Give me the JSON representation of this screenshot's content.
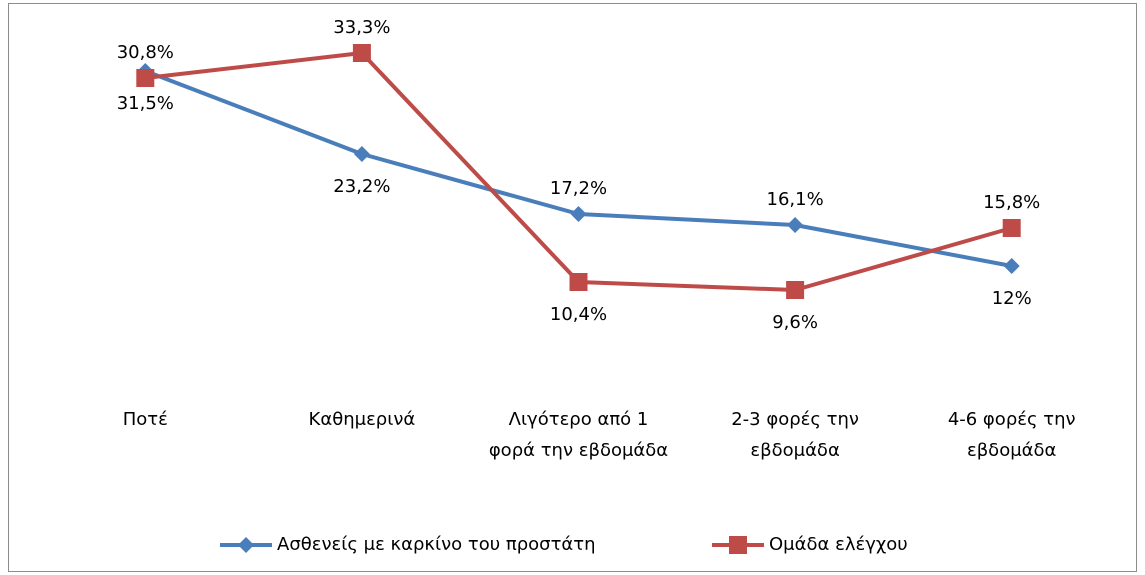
{
  "chart_data": {
    "type": "line",
    "categories": [
      "Ποτέ",
      "Καθημερινά",
      "Λιγότερο από 1 φορά την εβδομάδα",
      "2-3 φορές την εβδομάδα",
      "4-6 φορές την εβδομάδα"
    ],
    "series": [
      {
        "name": "Ασθενείς με καρκίνο του προστάτη",
        "color": "#4a7ebb",
        "values": [
          31.5,
          23.2,
          17.2,
          16.1,
          12
        ],
        "value_labels": [
          "31,5%",
          "23,2%",
          "17,2%",
          "16,1%",
          "12%"
        ]
      },
      {
        "name": "Ομάδα ελέγχου",
        "color": "#be4b48",
        "values": [
          30.8,
          33.3,
          10.4,
          9.6,
          15.8
        ],
        "value_labels": [
          "30,8%",
          "33,3%",
          "10,4%",
          "9,6%",
          "15,8%"
        ]
      }
    ],
    "ylim": [
      0,
      35
    ],
    "legend": "bottom"
  }
}
